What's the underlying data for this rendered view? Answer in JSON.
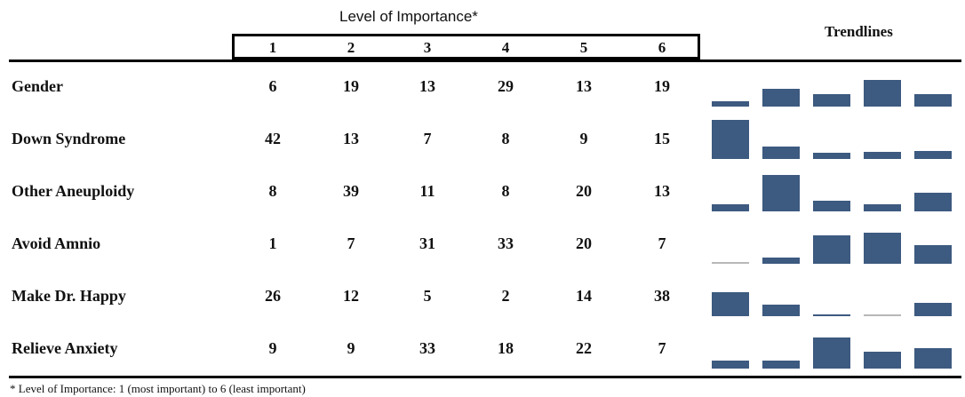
{
  "header": {
    "level_title": "Level of Importance*",
    "trendlines_title": "Trendlines"
  },
  "footnote": "* Level of Importance: 1 (most important) to 6 (least important)",
  "chart_data": {
    "type": "table",
    "title": "",
    "columns": [
      "1",
      "2",
      "3",
      "4",
      "5",
      "6"
    ],
    "rows": [
      {
        "label": "Gender",
        "values": [
          6,
          19,
          13,
          29,
          13,
          19
        ]
      },
      {
        "label": "Down Syndrome",
        "values": [
          42,
          13,
          7,
          8,
          9,
          15
        ]
      },
      {
        "label": "Other Aneuploidy",
        "values": [
          8,
          39,
          11,
          8,
          20,
          13
        ]
      },
      {
        "label": "Avoid Amnio",
        "values": [
          1,
          7,
          31,
          33,
          20,
          7
        ]
      },
      {
        "label": "Make Dr. Happy",
        "values": [
          26,
          12,
          5,
          2,
          14,
          38
        ]
      },
      {
        "label": "Relieve Anxiety",
        "values": [
          9,
          9,
          33,
          18,
          22,
          7
        ]
      }
    ],
    "trendline_type": "bar",
    "colors": {
      "bar": "#3d5a80",
      "baseline": "#b8b8b8"
    }
  }
}
